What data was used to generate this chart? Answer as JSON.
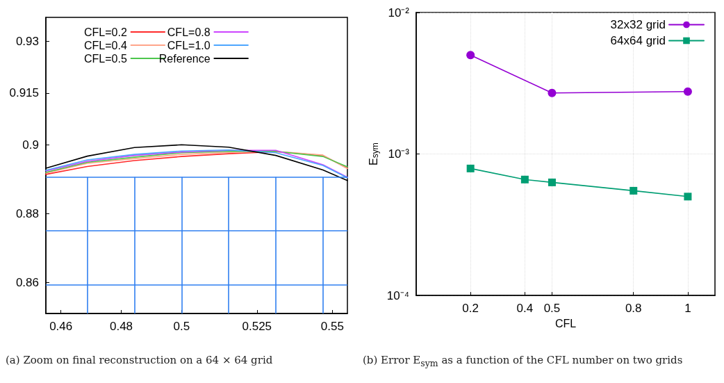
{
  "chart_data": [
    {
      "type": "line",
      "xlim": [
        0.455,
        0.555
      ],
      "xticks": [
        0.46,
        0.48,
        0.5,
        0.525,
        0.55
      ],
      "ylim": [
        0.851,
        0.937
      ],
      "yticks": [
        0.86,
        0.88,
        0.9,
        0.915,
        0.93
      ],
      "legend": "top",
      "x": [
        0.455,
        0.46875,
        0.484375,
        0.5,
        0.515625,
        0.53125,
        0.546875,
        0.555
      ],
      "series": [
        {
          "name": "CFL=0.2",
          "color": "#ff2a2a",
          "values": [
            0.8914,
            0.8937,
            0.8954,
            0.8966,
            0.8974,
            0.898,
            0.8969,
            0.8932
          ]
        },
        {
          "name": "CFL=0.4",
          "color": "#ffa58a",
          "values": [
            0.8918,
            0.8946,
            0.896,
            0.8972,
            0.8978,
            0.8981,
            0.897,
            0.8931
          ]
        },
        {
          "name": "CFL=0.5",
          "color": "#4cc64c",
          "values": [
            0.892,
            0.8949,
            0.8964,
            0.8977,
            0.8981,
            0.8981,
            0.8966,
            0.8936
          ]
        },
        {
          "name": "CFL=0.8",
          "color": "#cc44ff",
          "values": [
            0.8924,
            0.8952,
            0.8969,
            0.8979,
            0.8984,
            0.8984,
            0.8942,
            0.8906
          ]
        },
        {
          "name": "CFL=1.0",
          "color": "#4da6ff",
          "values": [
            0.8926,
            0.8956,
            0.8972,
            0.8982,
            0.8985,
            0.8977,
            0.894,
            0.8904
          ]
        },
        {
          "name": "Reference",
          "color": "#000000",
          "values": [
            0.8932,
            0.8967,
            0.8992,
            0.9,
            0.8993,
            0.8969,
            0.8927,
            0.8896
          ]
        }
      ],
      "ref_lines": [
        {
          "axis": "x",
          "value": 0.46875,
          "color": "#2f7ff0"
        },
        {
          "axis": "x",
          "value": 0.484375,
          "color": "#2f7ff0"
        },
        {
          "axis": "x",
          "value": 0.5,
          "color": "#2f7ff0"
        },
        {
          "axis": "x",
          "value": 0.515625,
          "color": "#2f7ff0"
        },
        {
          "axis": "x",
          "value": 0.53125,
          "color": "#2f7ff0"
        },
        {
          "axis": "x",
          "value": 0.546875,
          "color": "#2f7ff0"
        },
        {
          "axis": "y",
          "value": 0.890625,
          "color": "#2f7ff0"
        },
        {
          "axis": "y",
          "value": 0.875,
          "color": "#2f7ff0"
        },
        {
          "axis": "y",
          "value": 0.859375,
          "color": "#2f7ff0"
        }
      ],
      "annotations": [
        "(a) Zoom on final reconstruction on a 64 × 64 grid"
      ]
    },
    {
      "type": "line",
      "xlabel": "CFL",
      "ylabel": "E$_{sym}$",
      "xlim": [
        0,
        1.1
      ],
      "xticks": [
        0.2,
        0.4,
        0.5,
        0.8,
        1
      ],
      "log": "y",
      "ylim": [
        0.0001,
        0.01
      ],
      "yticks": [
        {
          "value": 0.0001,
          "label": "10⁻⁴"
        },
        {
          "value": 0.001,
          "label": "10⁻³"
        },
        {
          "value": 0.01,
          "label": "10⁻²"
        }
      ],
      "grid": true,
      "legend": "top right",
      "series": [
        {
          "name": "32x32 grid",
          "color": "#9400d3",
          "marker": "circle",
          "x": [
            0.2,
            0.5,
            1
          ],
          "values": [
            0.005,
            0.0027,
            0.00276
          ]
        },
        {
          "name": "64x64 grid",
          "color": "#009e73",
          "marker": "square",
          "x": [
            0.2,
            0.4,
            0.5,
            0.8,
            1
          ],
          "values": [
            0.00079,
            0.00066,
            0.00063,
            0.00055,
            0.0005
          ]
        }
      ],
      "annotations": [
        "(b) Error E$_{sym}$ as a function of the CFL number on two grids"
      ]
    }
  ]
}
